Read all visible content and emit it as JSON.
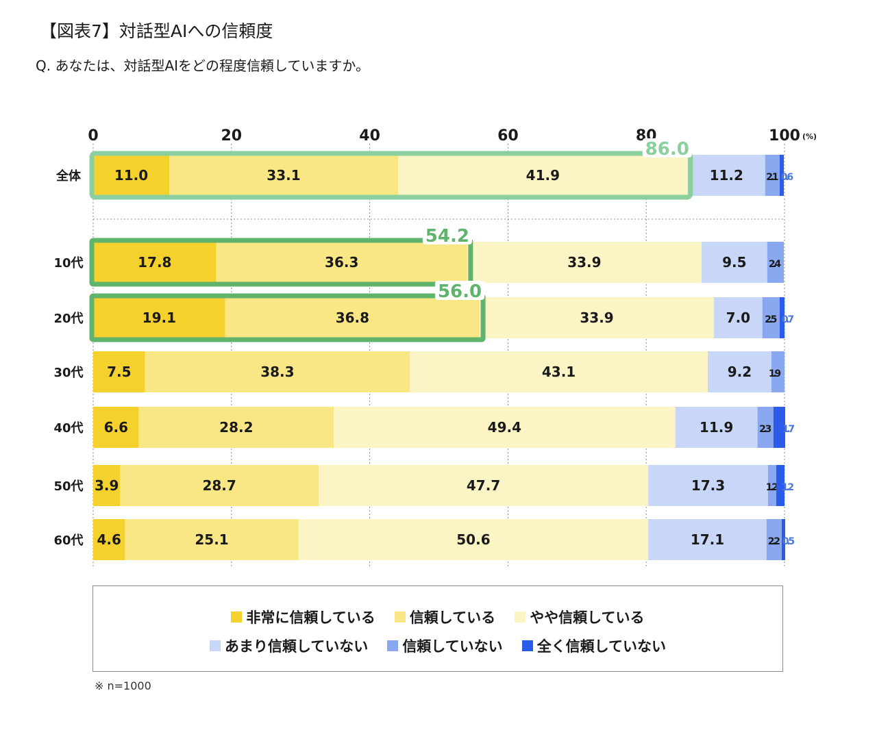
{
  "title": "【図表7】対話型AIへの信頼度",
  "subtitle": "Q. あなたは、対話型AIをどの程度信頼していますか。",
  "note": "※ n=1000",
  "colors": {
    "very_trust": "#f5d12e",
    "trust": "#f8e784",
    "somewhat_trust": "#fbf4c4",
    "not_much": "#c8d6f8",
    "no_trust": "#8aa8f0",
    "not_at_all": "#2b5be8",
    "highlight_all": "#8bcf9c",
    "highlight_age": "#5fb36a",
    "grid": "#888888"
  },
  "legend": [
    {
      "label": "非常に信頼している",
      "color_key": "very_trust"
    },
    {
      "label": "信頼している",
      "color_key": "trust"
    },
    {
      "label": "やや信頼している",
      "color_key": "somewhat_trust"
    },
    {
      "label": "あまり信頼していない",
      "color_key": "not_much"
    },
    {
      "label": "信頼していない",
      "color_key": "no_trust"
    },
    {
      "label": "全く信頼していない",
      "color_key": "not_at_all"
    }
  ],
  "chart_data": {
    "type": "bar",
    "orientation": "horizontal",
    "stacked": true,
    "x_unit": "(%)",
    "xlim": [
      0,
      100
    ],
    "x_ticks": [
      0,
      20,
      40,
      60,
      80,
      100
    ],
    "grid": true,
    "legend_position": "bottom",
    "categories": [
      "全体",
      "10代",
      "20代",
      "30代",
      "40代",
      "50代",
      "60代"
    ],
    "series": [
      {
        "name": "非常に信頼している",
        "values": [
          11.0,
          17.8,
          19.1,
          7.5,
          6.6,
          3.9,
          4.6
        ]
      },
      {
        "name": "信頼している",
        "values": [
          33.1,
          36.3,
          36.8,
          38.3,
          28.2,
          28.7,
          25.1
        ]
      },
      {
        "name": "やや信頼している",
        "values": [
          41.9,
          33.9,
          33.9,
          43.1,
          49.4,
          47.7,
          50.6
        ]
      },
      {
        "name": "あまり信頼していない",
        "values": [
          11.2,
          9.5,
          7.0,
          9.2,
          11.9,
          17.3,
          17.1
        ]
      },
      {
        "name": "信頼していない",
        "values": [
          2.1,
          2.4,
          2.5,
          1.9,
          2.3,
          1.2,
          2.2
        ]
      },
      {
        "name": "全く信頼していない",
        "values": [
          0.6,
          0.0,
          0.7,
          0.0,
          1.7,
          1.2,
          0.5
        ]
      }
    ],
    "value_labels": [
      [
        "11.0",
        "33.1",
        "41.9",
        "11.2",
        "2.1",
        "0.6"
      ],
      [
        "17.8",
        "36.3",
        "33.9",
        "9.5",
        "2.4",
        ""
      ],
      [
        "19.1",
        "36.8",
        "33.9",
        "7.0",
        "2.5",
        "0.7"
      ],
      [
        "7.5",
        "38.3",
        "43.1",
        "9.2",
        "1.9",
        ""
      ],
      [
        "6.6",
        "28.2",
        "49.4",
        "11.9",
        "2.3",
        "1.7"
      ],
      [
        "3.9",
        "28.7",
        "47.7",
        "17.3",
        "1.2",
        "1.2"
      ],
      [
        "4.6",
        "25.1",
        "50.6",
        "17.1",
        "2.2",
        "0.5"
      ]
    ],
    "highlights": [
      {
        "category": "全体",
        "value": 86.0,
        "label": "86.0"
      },
      {
        "category": "10代",
        "value": 54.2,
        "label": "54.2"
      },
      {
        "category": "20代",
        "value": 56.0,
        "label": "56.0"
      }
    ]
  }
}
